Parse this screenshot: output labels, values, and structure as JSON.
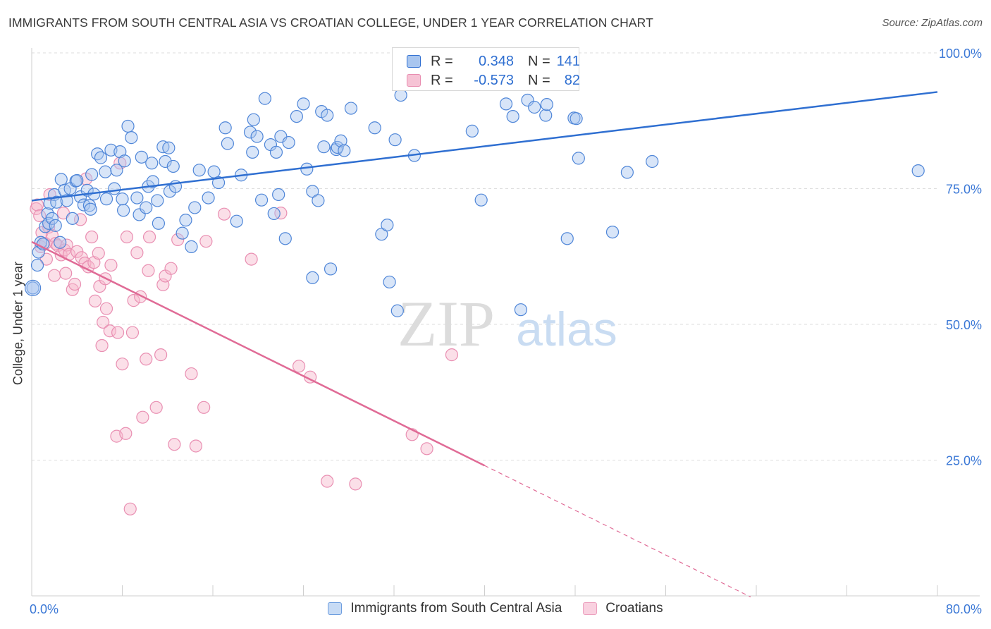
{
  "title": "IMMIGRANTS FROM SOUTH CENTRAL ASIA VS CROATIAN COLLEGE, UNDER 1 YEAR CORRELATION CHART",
  "source": "Source: ZipAtlas.com",
  "watermark": {
    "zip": "ZIP",
    "atlas": "atlas"
  },
  "stats": [
    {
      "r_label": "R =",
      "r_value": "0.348",
      "n_label": "N =",
      "n_value": "141"
    },
    {
      "r_label": "R =",
      "r_value": "-0.573",
      "n_label": "N =",
      "n_value": "82"
    }
  ],
  "legend": {
    "series1": "Immigrants from South Central Asia",
    "series2": "Croatians"
  },
  "colors": {
    "blue": "#2f6fd1",
    "blue_fill": "#a9c6ef",
    "pink": "#e06b96",
    "pink_fill": "#f6b7cd",
    "grid": "#dddddd",
    "tick_text": "#3b78d6"
  },
  "chart_data": {
    "type": "scatter",
    "title": "IMMIGRANTS FROM SOUTH CENTRAL ASIA VS CROATIAN COLLEGE, UNDER 1 YEAR CORRELATION CHART",
    "xlabel": "",
    "ylabel": "College, Under 1 year",
    "xlim": [
      0,
      80
    ],
    "ylim": [
      0,
      100
    ],
    "x_tick_labels": [
      "0.0%",
      "80.0%"
    ],
    "y_tick_labels": [
      "25.0%",
      "50.0%",
      "75.0%",
      "100.0%"
    ],
    "y_ticks": [
      25,
      50,
      75,
      100
    ],
    "grid": true,
    "legend_position": "bottom",
    "series": [
      {
        "name": "Immigrants from South Central Asia",
        "r": 0.348,
        "n": 141,
        "trend": {
          "x": [
            0,
            80
          ],
          "y": [
            72.8,
            92.8
          ]
        },
        "points": [
          [
            0.1,
            56.7
          ],
          [
            0.5,
            60.9
          ],
          [
            0.6,
            63.3
          ],
          [
            0.8,
            65.1
          ],
          [
            1.0,
            64.8
          ],
          [
            1.2,
            68.0
          ],
          [
            1.4,
            70.4
          ],
          [
            1.5,
            68.6
          ],
          [
            1.6,
            72.3
          ],
          [
            1.8,
            69.5
          ],
          [
            2.0,
            73.9
          ],
          [
            2.1,
            68.2
          ],
          [
            2.2,
            72.5
          ],
          [
            2.5,
            65.1
          ],
          [
            2.6,
            76.7
          ],
          [
            2.9,
            74.7
          ],
          [
            3.1,
            72.8
          ],
          [
            3.4,
            75.0
          ],
          [
            3.6,
            69.5
          ],
          [
            3.9,
            76.4
          ],
          [
            4.0,
            76.5
          ],
          [
            4.3,
            73.5
          ],
          [
            4.6,
            72.0
          ],
          [
            4.9,
            74.7
          ],
          [
            5.1,
            71.9
          ],
          [
            5.2,
            71.2
          ],
          [
            5.3,
            77.6
          ],
          [
            5.5,
            74.0
          ],
          [
            5.8,
            81.4
          ],
          [
            6.1,
            80.7
          ],
          [
            6.5,
            78.1
          ],
          [
            6.6,
            73.1
          ],
          [
            7.0,
            82.1
          ],
          [
            7.3,
            75.0
          ],
          [
            7.5,
            78.4
          ],
          [
            7.8,
            81.8
          ],
          [
            8.0,
            73.1
          ],
          [
            8.1,
            71.0
          ],
          [
            8.2,
            80.1
          ],
          [
            8.5,
            86.5
          ],
          [
            8.8,
            84.4
          ],
          [
            9.3,
            73.3
          ],
          [
            9.5,
            70.2
          ],
          [
            9.7,
            80.8
          ],
          [
            10.1,
            71.5
          ],
          [
            10.3,
            75.4
          ],
          [
            10.6,
            79.7
          ],
          [
            10.7,
            76.3
          ],
          [
            11.1,
            72.8
          ],
          [
            11.2,
            68.6
          ],
          [
            11.6,
            82.7
          ],
          [
            11.8,
            80.0
          ],
          [
            12.1,
            82.5
          ],
          [
            12.2,
            74.5
          ],
          [
            12.5,
            79.1
          ],
          [
            12.7,
            75.4
          ],
          [
            13.3,
            66.8
          ],
          [
            13.6,
            69.2
          ],
          [
            14.1,
            64.3
          ],
          [
            14.4,
            71.5
          ],
          [
            14.8,
            78.4
          ],
          [
            15.6,
            73.3
          ],
          [
            16.1,
            78.1
          ],
          [
            16.5,
            76.1
          ],
          [
            17.1,
            86.2
          ],
          [
            17.3,
            83.3
          ],
          [
            18.1,
            69.0
          ],
          [
            18.5,
            77.5
          ],
          [
            19.3,
            85.4
          ],
          [
            19.5,
            81.7
          ],
          [
            19.6,
            87.7
          ],
          [
            19.9,
            84.6
          ],
          [
            20.3,
            72.9
          ],
          [
            20.6,
            91.6
          ],
          [
            21.1,
            83.1
          ],
          [
            21.4,
            70.4
          ],
          [
            21.6,
            81.7
          ],
          [
            21.8,
            73.9
          ],
          [
            22.0,
            84.6
          ],
          [
            22.4,
            65.8
          ],
          [
            22.7,
            83.5
          ],
          [
            23.4,
            88.3
          ],
          [
            24.0,
            90.6
          ],
          [
            24.3,
            78.6
          ],
          [
            24.8,
            58.6
          ],
          [
            24.8,
            74.5
          ],
          [
            25.3,
            72.8
          ],
          [
            25.6,
            89.2
          ],
          [
            25.8,
            82.7
          ],
          [
            26.1,
            88.5
          ],
          [
            26.4,
            60.2
          ],
          [
            26.9,
            82.2
          ],
          [
            27.0,
            82.6
          ],
          [
            27.3,
            83.8
          ],
          [
            27.6,
            82.0
          ],
          [
            28.2,
            89.8
          ],
          [
            30.3,
            86.2
          ],
          [
            30.9,
            66.6
          ],
          [
            31.4,
            68.3
          ],
          [
            31.6,
            57.8
          ],
          [
            32.1,
            84.0
          ],
          [
            32.3,
            52.5
          ],
          [
            32.6,
            92.2
          ],
          [
            33.8,
            81.1
          ],
          [
            35.7,
            94.9
          ],
          [
            38.9,
            85.6
          ],
          [
            39.7,
            72.9
          ],
          [
            41.9,
            90.6
          ],
          [
            42.5,
            88.3
          ],
          [
            43.2,
            52.7
          ],
          [
            43.8,
            91.3
          ],
          [
            44.4,
            90.0
          ],
          [
            45.4,
            88.5
          ],
          [
            45.5,
            90.5
          ],
          [
            47.3,
            65.8
          ],
          [
            47.9,
            88.0
          ],
          [
            48.1,
            87.9
          ],
          [
            48.3,
            80.6
          ],
          [
            51.3,
            67.0
          ],
          [
            52.6,
            78.0
          ],
          [
            54.8,
            80.0
          ],
          [
            78.3,
            78.3
          ]
        ]
      },
      {
        "name": "Croatians",
        "r": -0.573,
        "n": 82,
        "trend": {
          "x": [
            0,
            40
          ],
          "y": [
            65.2,
            24.0
          ]
        },
        "trend_dashed": {
          "x": [
            40,
            63.5
          ],
          "y": [
            24.0,
            -0.2
          ]
        },
        "points": [
          [
            0.4,
            71.3
          ],
          [
            0.5,
            72.0
          ],
          [
            0.7,
            70.0
          ],
          [
            0.8,
            64.3
          ],
          [
            0.9,
            66.9
          ],
          [
            1.2,
            64.9
          ],
          [
            1.3,
            62.0
          ],
          [
            1.5,
            67.9
          ],
          [
            1.6,
            73.9
          ],
          [
            1.8,
            66.4
          ],
          [
            2.0,
            59.0
          ],
          [
            2.1,
            64.9
          ],
          [
            2.3,
            64.5
          ],
          [
            2.6,
            62.8
          ],
          [
            2.8,
            70.5
          ],
          [
            2.9,
            63.7
          ],
          [
            3.0,
            59.4
          ],
          [
            3.1,
            64.6
          ],
          [
            3.3,
            62.9
          ],
          [
            3.6,
            56.4
          ],
          [
            3.8,
            57.4
          ],
          [
            4.0,
            63.4
          ],
          [
            4.3,
            69.3
          ],
          [
            4.4,
            62.3
          ],
          [
            4.7,
            61.3
          ],
          [
            4.8,
            76.8
          ],
          [
            5.0,
            60.6
          ],
          [
            5.3,
            66.1
          ],
          [
            5.5,
            61.4
          ],
          [
            5.6,
            54.3
          ],
          [
            5.9,
            63.1
          ],
          [
            6.0,
            57.0
          ],
          [
            6.2,
            46.1
          ],
          [
            6.3,
            50.4
          ],
          [
            6.5,
            58.4
          ],
          [
            6.6,
            52.9
          ],
          [
            6.9,
            48.8
          ],
          [
            7.0,
            60.9
          ],
          [
            7.5,
            29.4
          ],
          [
            7.6,
            48.5
          ],
          [
            7.8,
            79.7
          ],
          [
            8.0,
            42.7
          ],
          [
            8.3,
            29.9
          ],
          [
            8.4,
            66.1
          ],
          [
            8.7,
            16.0
          ],
          [
            8.9,
            48.5
          ],
          [
            9.0,
            54.4
          ],
          [
            9.3,
            63.2
          ],
          [
            9.6,
            55.1
          ],
          [
            9.8,
            32.9
          ],
          [
            10.1,
            43.6
          ],
          [
            10.3,
            59.9
          ],
          [
            10.4,
            66.1
          ],
          [
            11.0,
            34.7
          ],
          [
            11.4,
            44.4
          ],
          [
            11.6,
            57.3
          ],
          [
            11.8,
            58.9
          ],
          [
            12.3,
            60.3
          ],
          [
            12.6,
            27.9
          ],
          [
            12.9,
            65.6
          ],
          [
            14.1,
            40.9
          ],
          [
            14.5,
            27.6
          ],
          [
            15.2,
            34.7
          ],
          [
            15.4,
            65.3
          ],
          [
            17.0,
            70.3
          ],
          [
            19.4,
            62.0
          ],
          [
            22.0,
            70.5
          ],
          [
            23.6,
            42.3
          ],
          [
            24.6,
            40.3
          ],
          [
            26.1,
            21.1
          ],
          [
            28.6,
            20.6
          ],
          [
            33.6,
            29.7
          ],
          [
            34.9,
            27.1
          ],
          [
            37.1,
            44.4
          ]
        ]
      }
    ]
  }
}
